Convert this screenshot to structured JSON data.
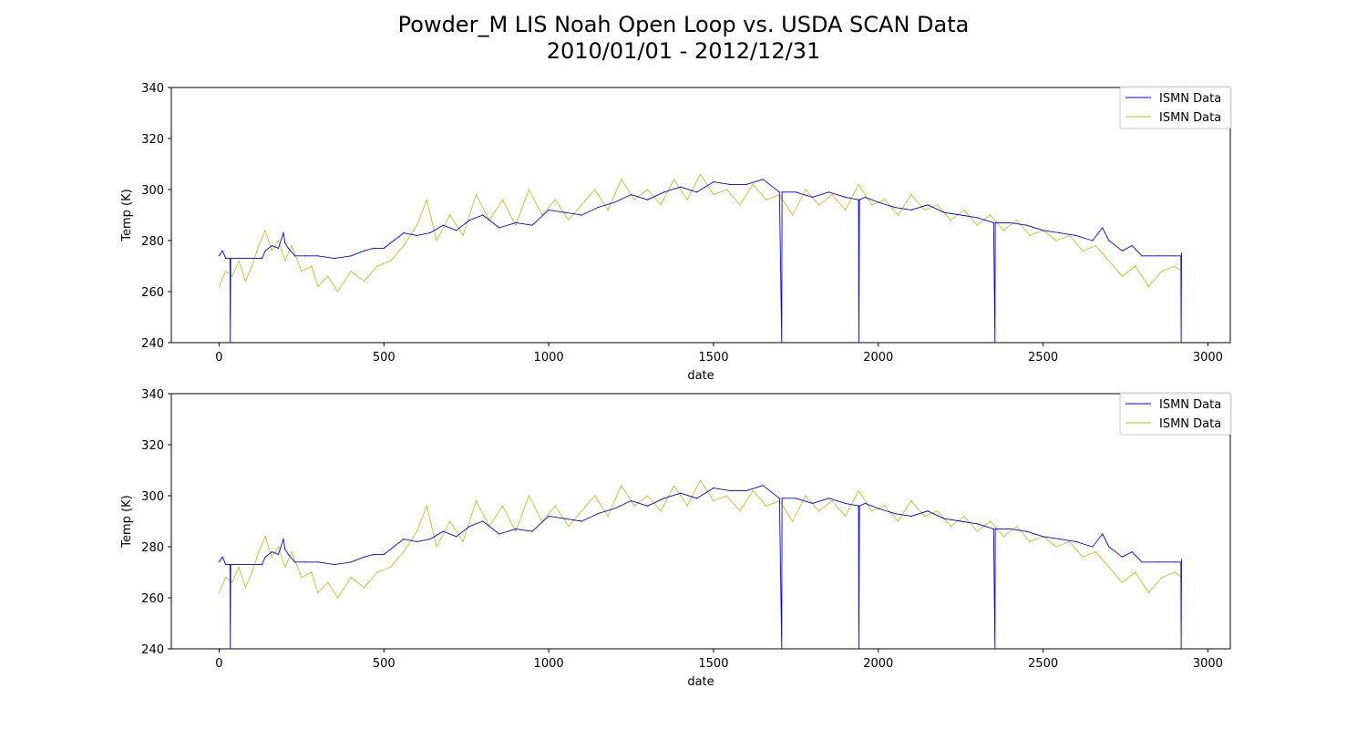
{
  "figure": {
    "title_line1": "Powder_M LIS Noah Open Loop vs. USDA SCAN Data",
    "title_line2": "2010/01/01 - 2012/12/31"
  },
  "colors": {
    "series_1": "#0000ff",
    "series_2": "#bfbf00",
    "axes": "#000000",
    "legend_border": "#cccccc",
    "background": "#ffffff"
  },
  "chart_data": [
    {
      "type": "line",
      "xlabel": "date",
      "ylabel": "Temp (K)",
      "xlim": [
        -145,
        3068
      ],
      "ylim": [
        240,
        340
      ],
      "xticks": [
        0,
        500,
        1000,
        1500,
        2000,
        2500,
        3000
      ],
      "yticks": [
        240,
        260,
        280,
        300,
        320,
        340
      ],
      "grid": false,
      "legend_position": "upper right",
      "series": [
        {
          "name": "ISMN Data",
          "color": "#0000ff",
          "x": [
            0,
            10,
            20,
            33,
            34,
            35,
            60,
            100,
            130,
            140,
            160,
            180,
            195,
            200,
            210,
            230,
            260,
            300,
            350,
            400,
            440,
            470,
            500,
            530,
            560,
            600,
            640,
            680,
            720,
            760,
            800,
            850,
            900,
            950,
            1000,
            1050,
            1100,
            1150,
            1200,
            1250,
            1300,
            1350,
            1400,
            1450,
            1500,
            1550,
            1600,
            1650,
            1700,
            1707,
            1708,
            1710,
            1750,
            1800,
            1850,
            1900,
            1940,
            1941,
            1943,
            1960,
            2000,
            2050,
            2100,
            2150,
            2200,
            2250,
            2300,
            2350,
            2354,
            2355,
            2357,
            2400,
            2450,
            2500,
            2550,
            2600,
            2650,
            2680,
            2700,
            2740,
            2770,
            2800,
            2850,
            2900,
            2918,
            2919,
            2920
          ],
          "y": [
            274,
            276,
            273,
            273,
            240,
            273,
            273,
            273,
            273,
            276,
            278,
            277,
            283,
            279,
            277,
            274,
            274,
            274,
            273,
            274,
            276,
            277,
            277,
            280,
            283,
            282,
            283,
            286,
            284,
            288,
            290,
            285,
            287,
            286,
            292,
            291,
            290,
            293,
            295,
            298,
            296,
            299,
            301,
            299,
            303,
            302,
            302,
            304,
            299,
            240,
            299,
            299,
            299,
            297,
            299,
            297,
            296,
            240,
            296,
            297,
            295,
            293,
            292,
            294,
            291,
            290,
            289,
            287,
            240,
            287,
            287,
            287,
            286,
            284,
            283,
            282,
            280,
            285,
            280,
            276,
            278,
            274,
            274,
            274,
            274,
            240,
            275
          ]
        },
        {
          "name": "ISMN Data",
          "color": "#bfbf00",
          "x": [
            0,
            20,
            40,
            60,
            80,
            100,
            120,
            140,
            160,
            180,
            200,
            220,
            250,
            280,
            300,
            330,
            360,
            400,
            440,
            480,
            520,
            560,
            600,
            630,
            660,
            700,
            740,
            780,
            820,
            860,
            900,
            940,
            980,
            1020,
            1060,
            1100,
            1140,
            1180,
            1220,
            1260,
            1300,
            1340,
            1380,
            1420,
            1460,
            1500,
            1540,
            1580,
            1620,
            1660,
            1700,
            1740,
            1780,
            1820,
            1860,
            1900,
            1940,
            1980,
            2020,
            2060,
            2100,
            2140,
            2180,
            2220,
            2260,
            2300,
            2340,
            2380,
            2420,
            2460,
            2500,
            2540,
            2580,
            2620,
            2660,
            2700,
            2740,
            2780,
            2820,
            2860,
            2900,
            2920
          ],
          "y": [
            262,
            268,
            266,
            272,
            264,
            270,
            278,
            284,
            276,
            280,
            272,
            278,
            268,
            270,
            262,
            266,
            260,
            268,
            264,
            270,
            272,
            278,
            286,
            296,
            280,
            290,
            282,
            298,
            288,
            296,
            286,
            300,
            290,
            296,
            288,
            294,
            300,
            292,
            304,
            296,
            300,
            294,
            304,
            296,
            306,
            298,
            300,
            294,
            302,
            296,
            298,
            290,
            300,
            294,
            298,
            292,
            302,
            294,
            296,
            290,
            298,
            292,
            294,
            288,
            292,
            286,
            290,
            284,
            288,
            282,
            284,
            280,
            282,
            276,
            278,
            272,
            266,
            270,
            262,
            268,
            270,
            268
          ]
        }
      ]
    },
    {
      "type": "line",
      "xlabel": "date",
      "ylabel": "Temp (K)",
      "xlim": [
        -145,
        3068
      ],
      "ylim": [
        240,
        340
      ],
      "xticks": [
        0,
        500,
        1000,
        1500,
        2000,
        2500,
        3000
      ],
      "yticks": [
        240,
        260,
        280,
        300,
        320,
        340
      ],
      "grid": false,
      "legend_position": "upper right",
      "series": [
        {
          "name": "ISMN Data",
          "color": "#0000ff",
          "x": [
            0,
            10,
            20,
            33,
            34,
            35,
            60,
            100,
            130,
            140,
            160,
            180,
            195,
            200,
            210,
            230,
            260,
            300,
            350,
            400,
            440,
            470,
            500,
            530,
            560,
            600,
            640,
            680,
            720,
            760,
            800,
            850,
            900,
            950,
            1000,
            1050,
            1100,
            1150,
            1200,
            1250,
            1300,
            1350,
            1400,
            1450,
            1500,
            1550,
            1600,
            1650,
            1700,
            1707,
            1708,
            1710,
            1750,
            1800,
            1850,
            1900,
            1940,
            1941,
            1943,
            1960,
            2000,
            2050,
            2100,
            2150,
            2200,
            2250,
            2300,
            2350,
            2354,
            2355,
            2357,
            2400,
            2450,
            2500,
            2550,
            2600,
            2650,
            2680,
            2700,
            2740,
            2770,
            2800,
            2850,
            2900,
            2918,
            2919,
            2920
          ],
          "y": [
            274,
            276,
            273,
            273,
            240,
            273,
            273,
            273,
            273,
            276,
            278,
            277,
            283,
            279,
            277,
            274,
            274,
            274,
            273,
            274,
            276,
            277,
            277,
            280,
            283,
            282,
            283,
            286,
            284,
            288,
            290,
            285,
            287,
            286,
            292,
            291,
            290,
            293,
            295,
            298,
            296,
            299,
            301,
            299,
            303,
            302,
            302,
            304,
            299,
            240,
            299,
            299,
            299,
            297,
            299,
            297,
            296,
            240,
            296,
            297,
            295,
            293,
            292,
            294,
            291,
            290,
            289,
            287,
            240,
            287,
            287,
            287,
            286,
            284,
            283,
            282,
            280,
            285,
            280,
            276,
            278,
            274,
            274,
            274,
            274,
            240,
            275
          ]
        },
        {
          "name": "ISMN Data",
          "color": "#bfbf00",
          "x": [
            0,
            20,
            40,
            60,
            80,
            100,
            120,
            140,
            160,
            180,
            200,
            220,
            250,
            280,
            300,
            330,
            360,
            400,
            440,
            480,
            520,
            560,
            600,
            630,
            660,
            700,
            740,
            780,
            820,
            860,
            900,
            940,
            980,
            1020,
            1060,
            1100,
            1140,
            1180,
            1220,
            1260,
            1300,
            1340,
            1380,
            1420,
            1460,
            1500,
            1540,
            1580,
            1620,
            1660,
            1700,
            1740,
            1780,
            1820,
            1860,
            1900,
            1940,
            1980,
            2020,
            2060,
            2100,
            2140,
            2180,
            2220,
            2260,
            2300,
            2340,
            2380,
            2420,
            2460,
            2500,
            2540,
            2580,
            2620,
            2660,
            2700,
            2740,
            2780,
            2820,
            2860,
            2900,
            2920
          ],
          "y": [
            262,
            268,
            266,
            272,
            264,
            270,
            278,
            284,
            276,
            280,
            272,
            278,
            268,
            270,
            262,
            266,
            260,
            268,
            264,
            270,
            272,
            278,
            286,
            296,
            280,
            290,
            282,
            298,
            288,
            296,
            286,
            300,
            290,
            296,
            288,
            294,
            300,
            292,
            304,
            296,
            300,
            294,
            304,
            296,
            306,
            298,
            300,
            294,
            302,
            296,
            298,
            290,
            300,
            294,
            298,
            292,
            302,
            294,
            296,
            290,
            298,
            292,
            294,
            288,
            292,
            286,
            290,
            284,
            288,
            282,
            284,
            280,
            282,
            276,
            278,
            272,
            266,
            270,
            262,
            268,
            270,
            268
          ]
        }
      ]
    }
  ]
}
